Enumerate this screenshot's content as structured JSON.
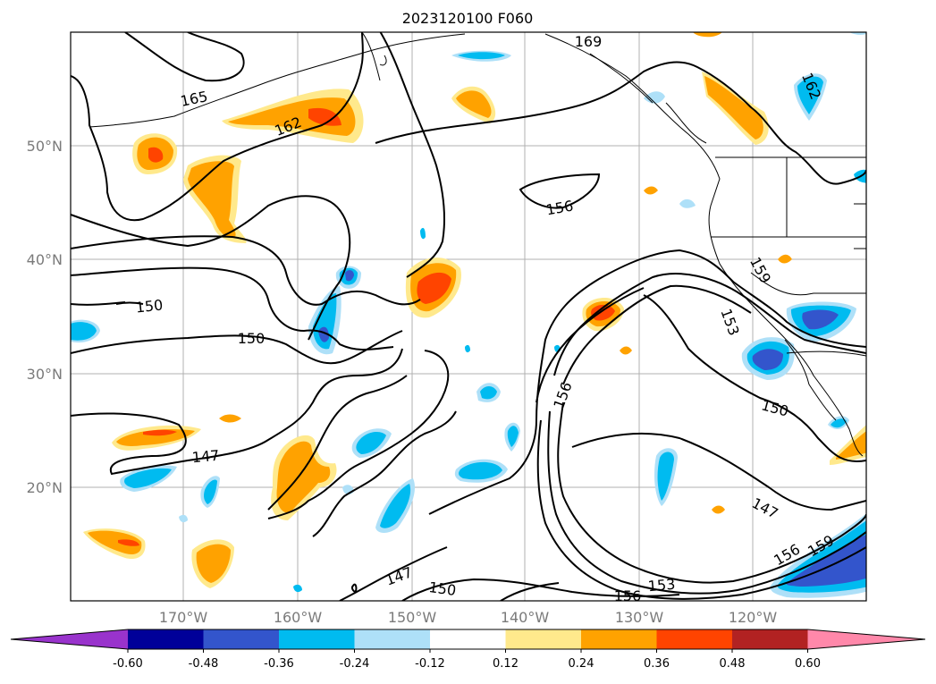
{
  "title": "2023120100 F060",
  "map": {
    "lat_labels": [
      "50°N",
      "40°N",
      "30°N",
      "20°N"
    ],
    "lon_labels": [
      "170°W",
      "160°W",
      "150°W",
      "140°W",
      "130°W",
      "120°W"
    ],
    "contour_labels": [
      "169",
      "165",
      "162",
      "162",
      "156",
      "159",
      "153",
      "150",
      "150",
      "150",
      "156",
      "147",
      "147",
      "147",
      "150",
      "156",
      "153",
      "156",
      "159"
    ]
  },
  "colorbar": {
    "tick_labels": [
      "-0.60",
      "-0.48",
      "-0.36",
      "-0.24",
      "-0.12",
      "0.12",
      "0.24",
      "0.36",
      "0.48",
      "0.60"
    ],
    "colors": [
      "#9933cc",
      "#000099",
      "#3355cc",
      "#00bbf0",
      "#aee0f8",
      "#ffffff",
      "#ffe98c",
      "#ffa200",
      "#ff4400",
      "#b22222",
      "#ff88aa"
    ]
  }
}
